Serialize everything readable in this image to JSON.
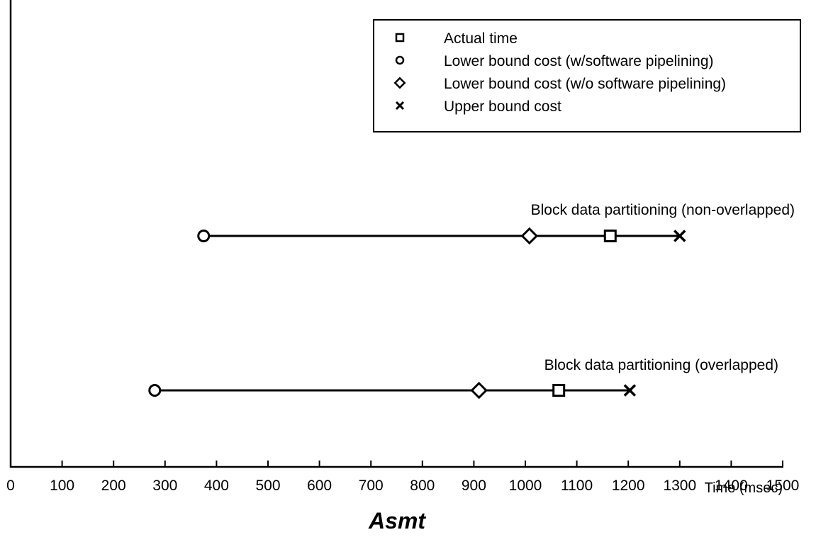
{
  "chart_data": {
    "type": "scatter",
    "title": "Asmt",
    "xlabel": "Time (msec)",
    "ylabel": "",
    "xlim": [
      0,
      1500
    ],
    "x_ticks": [
      0,
      100,
      200,
      300,
      400,
      500,
      600,
      700,
      800,
      900,
      1000,
      1100,
      1200,
      1300,
      1400,
      1500
    ],
    "x_tick_labels": [
      "0",
      "100",
      "200",
      "300",
      "400",
      "500",
      "600",
      "700",
      "800",
      "900",
      "1000",
      "1100",
      "1200",
      "1300",
      "1400",
      "1500"
    ],
    "grid": false,
    "legend_position": "top-right",
    "categories": [
      "Block data partitioning (non-overlapped)",
      "Block data partitioning (overlapped)"
    ],
    "series": [
      {
        "name": "Actual time",
        "marker": "square",
        "values": [
          1165,
          1065
        ]
      },
      {
        "name": "Lower bound cost (w/software pipelining)",
        "marker": "circle",
        "values": [
          375,
          280
        ]
      },
      {
        "name": "Lower bound cost (w/o software pipelining)",
        "marker": "diamond",
        "values": [
          1008,
          910
        ]
      },
      {
        "name": "Upper bound cost",
        "marker": "cross",
        "values": [
          1300,
          1203
        ]
      }
    ]
  }
}
